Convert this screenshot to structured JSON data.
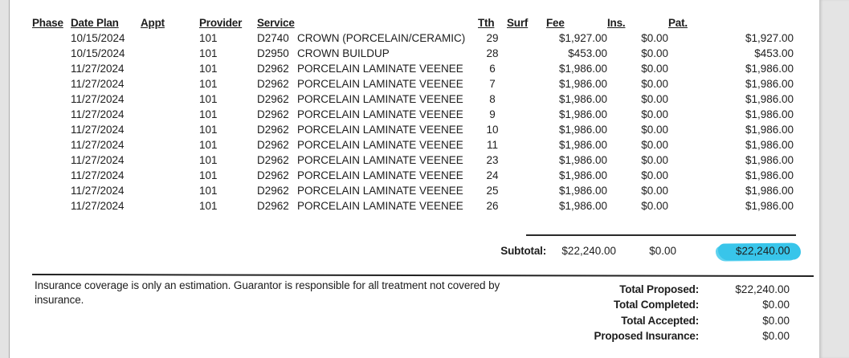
{
  "page": {
    "highlight_color": "#38c5ea",
    "margin_color": "#e4e4e4"
  },
  "table": {
    "headers": {
      "phase": "Phase",
      "date_plan": "Date Plan",
      "appt": "Appt",
      "provider": "Provider",
      "service": "Service",
      "tth": "Tth",
      "surf": "Surf",
      "fee": "Fee",
      "ins": "Ins.",
      "pat": "Pat."
    },
    "rows": [
      {
        "phase": "",
        "date_plan": "10/15/2024",
        "appt": "",
        "provider": "101",
        "code": "D2740",
        "desc": "CROWN (PORCELAIN/CERAMIC)",
        "tth": "29",
        "surf": "",
        "fee": "$1,927.00",
        "ins": "$0.00",
        "pat": "$1,927.00"
      },
      {
        "phase": "",
        "date_plan": "10/15/2024",
        "appt": "",
        "provider": "101",
        "code": "D2950",
        "desc": "CROWN BUILDUP",
        "tth": "28",
        "surf": "",
        "fee": "$453.00",
        "ins": "$0.00",
        "pat": "$453.00"
      },
      {
        "phase": "",
        "date_plan": "11/27/2024",
        "appt": "",
        "provider": "101",
        "code": "D2962",
        "desc": "PORCELAIN LAMINATE VEENEE",
        "tth": "6",
        "surf": "",
        "fee": "$1,986.00",
        "ins": "$0.00",
        "pat": "$1,986.00"
      },
      {
        "phase": "",
        "date_plan": "11/27/2024",
        "appt": "",
        "provider": "101",
        "code": "D2962",
        "desc": "PORCELAIN LAMINATE VEENEE",
        "tth": "7",
        "surf": "",
        "fee": "$1,986.00",
        "ins": "$0.00",
        "pat": "$1,986.00"
      },
      {
        "phase": "",
        "date_plan": "11/27/2024",
        "appt": "",
        "provider": "101",
        "code": "D2962",
        "desc": "PORCELAIN LAMINATE VEENEE",
        "tth": "8",
        "surf": "",
        "fee": "$1,986.00",
        "ins": "$0.00",
        "pat": "$1,986.00"
      },
      {
        "phase": "",
        "date_plan": "11/27/2024",
        "appt": "",
        "provider": "101",
        "code": "D2962",
        "desc": "PORCELAIN LAMINATE VEENEE",
        "tth": "9",
        "surf": "",
        "fee": "$1,986.00",
        "ins": "$0.00",
        "pat": "$1,986.00"
      },
      {
        "phase": "",
        "date_plan": "11/27/2024",
        "appt": "",
        "provider": "101",
        "code": "D2962",
        "desc": "PORCELAIN LAMINATE VEENEE",
        "tth": "10",
        "surf": "",
        "fee": "$1,986.00",
        "ins": "$0.00",
        "pat": "$1,986.00"
      },
      {
        "phase": "",
        "date_plan": "11/27/2024",
        "appt": "",
        "provider": "101",
        "code": "D2962",
        "desc": "PORCELAIN LAMINATE VEENEE",
        "tth": "11",
        "surf": "",
        "fee": "$1,986.00",
        "ins": "$0.00",
        "pat": "$1,986.00"
      },
      {
        "phase": "",
        "date_plan": "11/27/2024",
        "appt": "",
        "provider": "101",
        "code": "D2962",
        "desc": "PORCELAIN LAMINATE VEENEE",
        "tth": "23",
        "surf": "",
        "fee": "$1,986.00",
        "ins": "$0.00",
        "pat": "$1,986.00"
      },
      {
        "phase": "",
        "date_plan": "11/27/2024",
        "appt": "",
        "provider": "101",
        "code": "D2962",
        "desc": "PORCELAIN LAMINATE VEENEE",
        "tth": "24",
        "surf": "",
        "fee": "$1,986.00",
        "ins": "$0.00",
        "pat": "$1,986.00"
      },
      {
        "phase": "",
        "date_plan": "11/27/2024",
        "appt": "",
        "provider": "101",
        "code": "D2962",
        "desc": "PORCELAIN LAMINATE VEENEE",
        "tth": "25",
        "surf": "",
        "fee": "$1,986.00",
        "ins": "$0.00",
        "pat": "$1,986.00"
      },
      {
        "phase": "",
        "date_plan": "11/27/2024",
        "appt": "",
        "provider": "101",
        "code": "D2962",
        "desc": "PORCELAIN LAMINATE VEENEE",
        "tth": "26",
        "surf": "",
        "fee": "$1,986.00",
        "ins": "$0.00",
        "pat": "$1,986.00"
      }
    ]
  },
  "subtotal": {
    "label": "Subtotal:",
    "fee": "$22,240.00",
    "ins": "$0.00",
    "pat": "$22,240.00",
    "pat_highlighted": true
  },
  "disclaimer": "Insurance coverage is only an estimation. Guarantor is responsible for all treatment not covered by insurance.",
  "totals": [
    {
      "label": "Total Proposed:",
      "value": "$22,240.00"
    },
    {
      "label": "Total Completed:",
      "value": "$0.00"
    },
    {
      "label": "Total Accepted:",
      "value": "$0.00"
    },
    {
      "label": "Proposed Insurance:",
      "value": "$0.00"
    }
  ]
}
